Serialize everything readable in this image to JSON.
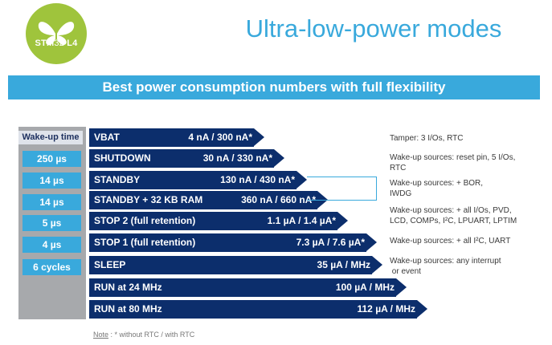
{
  "logo": {
    "text_a": "STM",
    "text_b": "32",
    "text_c": " L4",
    "icon": "butterfly-icon"
  },
  "title": "Ultra-low-power modes",
  "banner": "Best power consumption numbers with full flexibility",
  "wake_header": "Wake-up time",
  "wake_times": [
    "250 µs",
    "14 µs",
    "14 µs",
    "5 µs",
    "4 µs",
    "6 cycles"
  ],
  "modes": [
    {
      "name": "VBAT",
      "value": "4 nA / 300 nA*"
    },
    {
      "name": "SHUTDOWN",
      "value": "30 nA / 330 nA*"
    },
    {
      "name": "STANDBY",
      "value": "130 nA / 430 nA*"
    },
    {
      "name": "STANDBY + 32 KB RAM",
      "value": "360 nA / 660 nA*"
    },
    {
      "name": "STOP 2 (full retention)",
      "value": "1.1 µA / 1.4 µA*"
    },
    {
      "name": "STOP 1 (full retention)",
      "value": "7.3 µA / 7.6 µA*"
    },
    {
      "name": "SLEEP",
      "value": "35 µA / MHz"
    },
    {
      "name": "RUN at 24 MHz",
      "value": "100 µA / MHz"
    },
    {
      "name": "RUN at 80 MHz",
      "value": "112 µA / MHz"
    }
  ],
  "descriptions": [
    {
      "line1": "Tamper: 3 I/Os, RTC",
      "line2": ""
    },
    {
      "line1": "Wake-up sources: reset pin, 5 I/Os,",
      "line2": "RTC"
    },
    {
      "line1": "Wake-up sources: + BOR,",
      "line2": "IWDG"
    },
    {
      "line1": "Wake-up sources: + all I/Os, PVD,",
      "line2": "LCD, COMPs, I²C, LPUART, LPTIM"
    },
    {
      "line1": "Wake-up sources: + all I²C, UART",
      "line2": ""
    },
    {
      "line1": "Wake-up sources: any interrupt",
      "line2": " or event"
    }
  ],
  "note": {
    "label": "Note",
    "text": " : * without RTC / with RTC"
  },
  "colors": {
    "navy": "#0c2e6c",
    "cyan": "#39a9dc",
    "green": "#9fc43c",
    "grey": "#a7a9ac"
  }
}
